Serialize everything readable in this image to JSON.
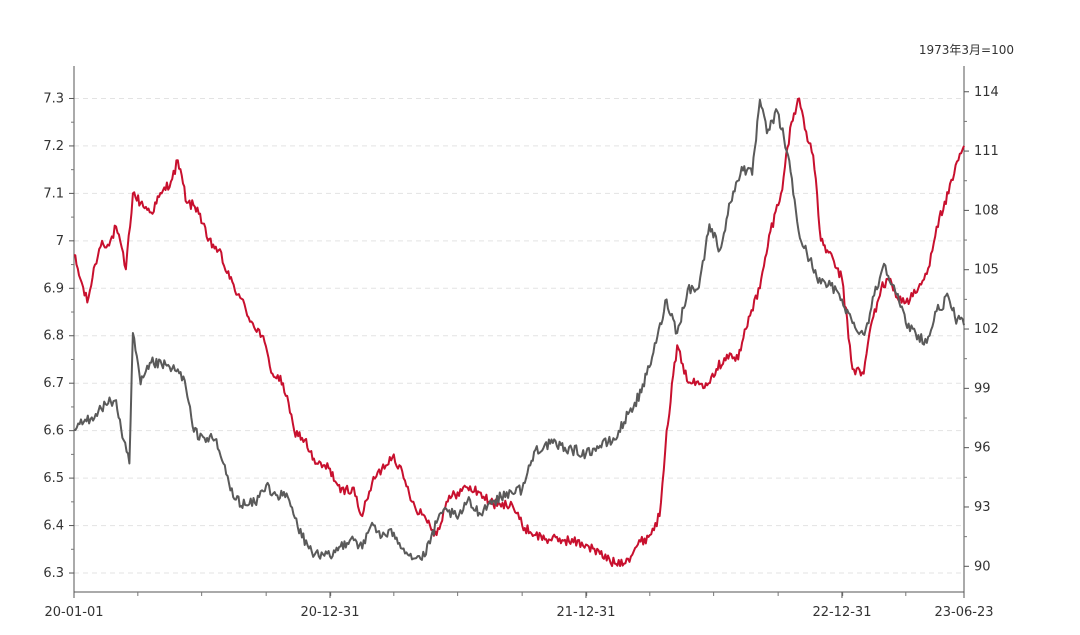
{
  "chart_data": {
    "type": "line",
    "title": "",
    "xlabel": "",
    "ylabel": "",
    "y2label": "1973年3月=100",
    "x_ticks": [
      "20-01-01",
      "20-12-31",
      "21-12-31",
      "22-12-31",
      "23-06-23"
    ],
    "x_range": [
      "2020-01-01",
      "2023-06-23"
    ],
    "ylim": [
      6.26,
      7.36
    ],
    "y_ticks": [
      6.3,
      6.4,
      6.5,
      6.6,
      6.7,
      6.8,
      6.9,
      7.0,
      7.1,
      7.2,
      7.3
    ],
    "y_tick_labels": [
      "6.3",
      "6.4",
      "6.5",
      "6.6",
      "6.7",
      "6.8",
      "6.9",
      "7",
      "7.1",
      "7.2",
      "7.3"
    ],
    "y2lim": [
      88.7,
      115.1
    ],
    "y2_ticks": [
      90,
      93,
      96,
      99,
      102,
      105,
      108,
      111,
      114
    ],
    "y2_tick_labels": [
      "90",
      "93",
      "96",
      "99",
      "102",
      "105",
      "108",
      "111",
      "114"
    ],
    "grid": true,
    "legend": "none",
    "series": [
      {
        "axis": "left",
        "color": "#c8102e",
        "points": [
          [
            "2020-01-01",
            6.97
          ],
          [
            "2020-01-10",
            6.92
          ],
          [
            "2020-01-20",
            6.87
          ],
          [
            "2020-01-31",
            6.95
          ],
          [
            "2020-02-10",
            7.0
          ],
          [
            "2020-02-20",
            6.99
          ],
          [
            "2020-03-01",
            7.03
          ],
          [
            "2020-03-15",
            6.94
          ],
          [
            "2020-03-25",
            7.1
          ],
          [
            "2020-04-05",
            7.08
          ],
          [
            "2020-04-20",
            7.06
          ],
          [
            "2020-05-05",
            7.1
          ],
          [
            "2020-05-20",
            7.13
          ],
          [
            "2020-05-28",
            7.17
          ],
          [
            "2020-06-10",
            7.08
          ],
          [
            "2020-06-25",
            7.07
          ],
          [
            "2020-07-10",
            7.0
          ],
          [
            "2020-07-25",
            6.98
          ],
          [
            "2020-08-10",
            6.92
          ],
          [
            "2020-08-25",
            6.88
          ],
          [
            "2020-09-10",
            6.83
          ],
          [
            "2020-09-25",
            6.8
          ],
          [
            "2020-10-10",
            6.72
          ],
          [
            "2020-10-25",
            6.7
          ],
          [
            "2020-11-10",
            6.6
          ],
          [
            "2020-11-25",
            6.58
          ],
          [
            "2020-12-10",
            6.53
          ],
          [
            "2020-12-31",
            6.52
          ],
          [
            "2021-01-15",
            6.47
          ],
          [
            "2021-02-01",
            6.48
          ],
          [
            "2021-02-15",
            6.42
          ],
          [
            "2021-03-01",
            6.49
          ],
          [
            "2021-03-15",
            6.52
          ],
          [
            "2021-04-01",
            6.55
          ],
          [
            "2021-04-15",
            6.5
          ],
          [
            "2021-05-01",
            6.44
          ],
          [
            "2021-05-15",
            6.42
          ],
          [
            "2021-06-01",
            6.38
          ],
          [
            "2021-06-15",
            6.45
          ],
          [
            "2021-07-01",
            6.47
          ],
          [
            "2021-07-15",
            6.48
          ],
          [
            "2021-08-01",
            6.47
          ],
          [
            "2021-08-15",
            6.45
          ],
          [
            "2021-09-01",
            6.44
          ],
          [
            "2021-09-15",
            6.45
          ],
          [
            "2021-10-01",
            6.4
          ],
          [
            "2021-10-20",
            6.38
          ],
          [
            "2021-11-10",
            6.37
          ],
          [
            "2021-12-01",
            6.37
          ],
          [
            "2021-12-31",
            6.36
          ],
          [
            "2022-01-20",
            6.34
          ],
          [
            "2022-02-10",
            6.32
          ],
          [
            "2022-03-01",
            6.33
          ],
          [
            "2022-03-15",
            6.36
          ],
          [
            "2022-04-01",
            6.38
          ],
          [
            "2022-04-15",
            6.42
          ],
          [
            "2022-04-25",
            6.6
          ],
          [
            "2022-05-10",
            6.78
          ],
          [
            "2022-05-20",
            6.72
          ],
          [
            "2022-06-01",
            6.7
          ],
          [
            "2022-06-20",
            6.7
          ],
          [
            "2022-07-05",
            6.73
          ],
          [
            "2022-07-20",
            6.76
          ],
          [
            "2022-08-05",
            6.75
          ],
          [
            "2022-08-20",
            6.84
          ],
          [
            "2022-09-05",
            6.9
          ],
          [
            "2022-09-20",
            7.02
          ],
          [
            "2022-10-05",
            7.1
          ],
          [
            "2022-10-20",
            7.25
          ],
          [
            "2022-10-31",
            7.3
          ],
          [
            "2022-11-10",
            7.23
          ],
          [
            "2022-11-20",
            7.18
          ],
          [
            "2022-12-01",
            7.0
          ],
          [
            "2022-12-10",
            6.98
          ],
          [
            "2022-12-31",
            6.92
          ],
          [
            "2023-01-15",
            6.73
          ],
          [
            "2023-01-31",
            6.72
          ],
          [
            "2023-02-10",
            6.82
          ],
          [
            "2023-02-25",
            6.9
          ],
          [
            "2023-03-10",
            6.92
          ],
          [
            "2023-03-20",
            6.88
          ],
          [
            "2023-04-01",
            6.87
          ],
          [
            "2023-04-15",
            6.89
          ],
          [
            "2023-05-01",
            6.93
          ],
          [
            "2023-05-15",
            7.03
          ],
          [
            "2023-06-01",
            7.1
          ],
          [
            "2023-06-15",
            7.17
          ],
          [
            "2023-06-23",
            7.2
          ]
        ]
      },
      {
        "axis": "right",
        "color": "#5a5a5a",
        "points": [
          [
            "2020-01-01",
            96.9
          ],
          [
            "2020-01-15",
            97.3
          ],
          [
            "2020-02-01",
            97.7
          ],
          [
            "2020-02-15",
            98.2
          ],
          [
            "2020-03-01",
            98.4
          ],
          [
            "2020-03-10",
            96.5
          ],
          [
            "2020-03-20",
            95.2
          ],
          [
            "2020-03-25",
            101.8
          ],
          [
            "2020-04-05",
            99.2
          ],
          [
            "2020-04-20",
            100.3
          ],
          [
            "2020-05-05",
            100.2
          ],
          [
            "2020-05-20",
            100.0
          ],
          [
            "2020-06-05",
            99.6
          ],
          [
            "2020-06-20",
            96.8
          ],
          [
            "2020-07-05",
            96.5
          ],
          [
            "2020-07-20",
            96.4
          ],
          [
            "2020-08-01",
            95.2
          ],
          [
            "2020-08-15",
            93.5
          ],
          [
            "2020-09-01",
            93.1
          ],
          [
            "2020-09-15",
            93.2
          ],
          [
            "2020-10-01",
            94.1
          ],
          [
            "2020-10-15",
            93.6
          ],
          [
            "2020-11-01",
            93.5
          ],
          [
            "2020-11-15",
            92.0
          ],
          [
            "2020-12-01",
            90.9
          ],
          [
            "2020-12-15",
            90.5
          ],
          [
            "2020-12-31",
            90.5
          ],
          [
            "2021-01-15",
            91.0
          ],
          [
            "2021-02-01",
            91.5
          ],
          [
            "2021-02-15",
            90.9
          ],
          [
            "2021-03-01",
            92.2
          ],
          [
            "2021-03-15",
            91.5
          ],
          [
            "2021-04-01",
            91.7
          ],
          [
            "2021-04-15",
            90.9
          ],
          [
            "2021-05-01",
            90.4
          ],
          [
            "2021-05-15",
            90.5
          ],
          [
            "2021-06-01",
            92.2
          ],
          [
            "2021-06-15",
            92.9
          ],
          [
            "2021-07-01",
            92.4
          ],
          [
            "2021-07-15",
            93.3
          ],
          [
            "2021-08-01",
            92.7
          ],
          [
            "2021-08-15",
            93.2
          ],
          [
            "2021-09-01",
            93.5
          ],
          [
            "2021-09-15",
            93.8
          ],
          [
            "2021-10-01",
            93.9
          ],
          [
            "2021-10-20",
            95.9
          ],
          [
            "2021-11-10",
            96.2
          ],
          [
            "2021-12-01",
            96.0
          ],
          [
            "2021-12-31",
            95.7
          ],
          [
            "2022-01-20",
            96.1
          ],
          [
            "2022-02-10",
            96.4
          ],
          [
            "2022-03-01",
            97.7
          ],
          [
            "2022-03-20",
            98.8
          ],
          [
            "2022-04-10",
            101.3
          ],
          [
            "2022-04-25",
            103.5
          ],
          [
            "2022-05-10",
            101.8
          ],
          [
            "2022-05-25",
            104.0
          ],
          [
            "2022-06-10",
            104.1
          ],
          [
            "2022-06-25",
            107.3
          ],
          [
            "2022-07-10",
            106.0
          ],
          [
            "2022-07-25",
            108.4
          ],
          [
            "2022-08-10",
            110.2
          ],
          [
            "2022-08-25",
            109.8
          ],
          [
            "2022-09-05",
            113.6
          ],
          [
            "2022-09-15",
            111.9
          ],
          [
            "2022-09-30",
            113.0
          ],
          [
            "2022-10-15",
            110.8
          ],
          [
            "2022-11-01",
            106.6
          ],
          [
            "2022-11-15",
            105.5
          ],
          [
            "2022-12-01",
            104.3
          ],
          [
            "2022-12-15",
            104.2
          ],
          [
            "2022-12-31",
            103.5
          ],
          [
            "2023-01-15",
            102.3
          ],
          [
            "2023-02-01",
            101.7
          ],
          [
            "2023-02-15",
            103.7
          ],
          [
            "2023-03-01",
            105.3
          ],
          [
            "2023-03-15",
            104.2
          ],
          [
            "2023-04-01",
            102.3
          ],
          [
            "2023-04-15",
            101.8
          ],
          [
            "2023-05-01",
            101.3
          ],
          [
            "2023-05-15",
            102.9
          ],
          [
            "2023-06-01",
            103.6
          ],
          [
            "2023-06-10",
            102.6
          ],
          [
            "2023-06-23",
            102.2
          ]
        ]
      }
    ]
  }
}
